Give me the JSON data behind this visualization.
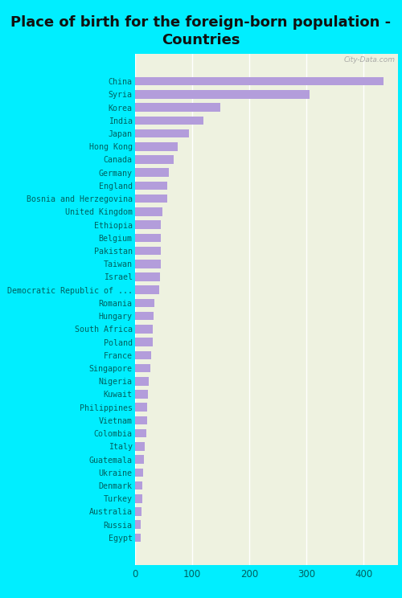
{
  "title": "Place of birth for the foreign-born population -\nCountries",
  "countries": [
    "China",
    "Syria",
    "Korea",
    "India",
    "Japan",
    "Hong Kong",
    "Canada",
    "Germany",
    "England",
    "Bosnia and Herzegovina",
    "United Kingdom",
    "Ethiopia",
    "Belgium",
    "Pakistan",
    "Taiwan",
    "Israel",
    "Democratic Republic of ...",
    "Romania",
    "Hungary",
    "South Africa",
    "Poland",
    "France",
    "Singapore",
    "Nigeria",
    "Kuwait",
    "Philippines",
    "Vietnam",
    "Colombia",
    "Italy",
    "Guatemala",
    "Ukraine",
    "Denmark",
    "Turkey",
    "Australia",
    "Russia",
    "Egypt"
  ],
  "values": [
    435,
    305,
    150,
    120,
    95,
    75,
    68,
    60,
    57,
    57,
    48,
    46,
    45,
    45,
    45,
    44,
    43,
    35,
    33,
    32,
    31,
    29,
    28,
    24,
    23,
    22,
    22,
    21,
    18,
    16,
    15,
    14,
    13,
    12,
    11,
    10
  ],
  "bar_color": "#b39ddb",
  "background_color": "#00eeff",
  "plot_bg_color": "#eef2e0",
  "title_fontsize": 13,
  "watermark": "City-Data.com",
  "xlim": [
    0,
    460
  ],
  "label_color": "#006060"
}
